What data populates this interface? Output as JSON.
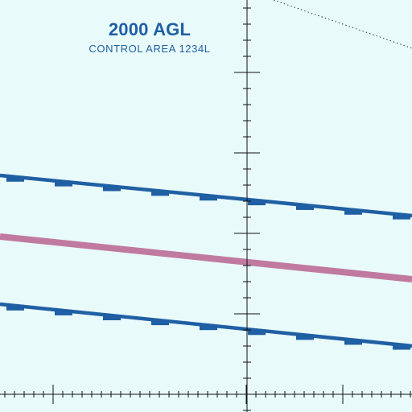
{
  "airspace": {
    "floor_label": "2000 AGL",
    "area_label": "CONTROL AREA 1234L"
  },
  "colors": {
    "background": "#e8fafa",
    "airspace_boundary": "#1f5fa3",
    "airway": "#c07aa0",
    "graticule": "#111111"
  }
}
